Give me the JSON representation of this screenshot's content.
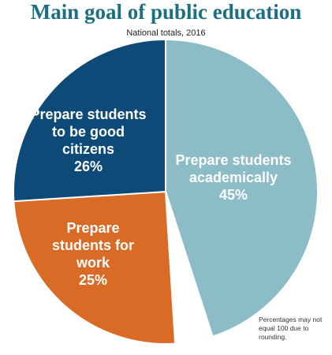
{
  "chart_data": {
    "type": "pie",
    "title": "Main goal of public education",
    "subtitle": "National totals, 2016",
    "categories": [
      "Prepare students academically",
      null,
      "Prepare students for work",
      "Prepare students to be good citizens"
    ],
    "values": [
      45,
      4,
      25,
      26
    ],
    "value_labels": [
      "45%",
      null,
      "25%",
      "26%"
    ],
    "colors": [
      "#8cbcc6",
      "#ffffff",
      "#d96b27",
      "#0e4a78"
    ],
    "note": "Percentages may not equal 100 due to rounding."
  }
}
